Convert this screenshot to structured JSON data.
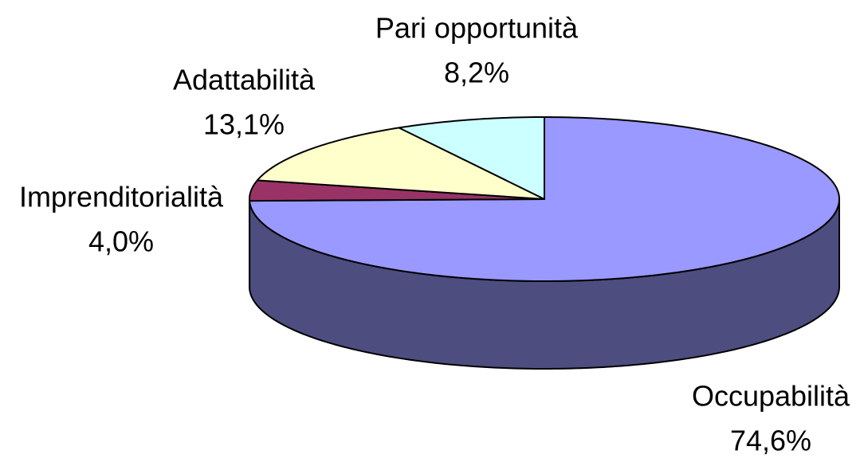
{
  "chart_data": {
    "type": "pie",
    "categories": [
      "Occupabilità",
      "Imprenditorialità",
      "Adattabilità",
      "Pari opportunità"
    ],
    "values": [
      74.6,
      4.0,
      13.1,
      8.2
    ],
    "value_labels": [
      "74,6%",
      "4,0%",
      "13,1%",
      "8,2%"
    ],
    "colors": [
      "#9999ff",
      "#993366",
      "#ffffcc",
      "#ccffff"
    ]
  }
}
